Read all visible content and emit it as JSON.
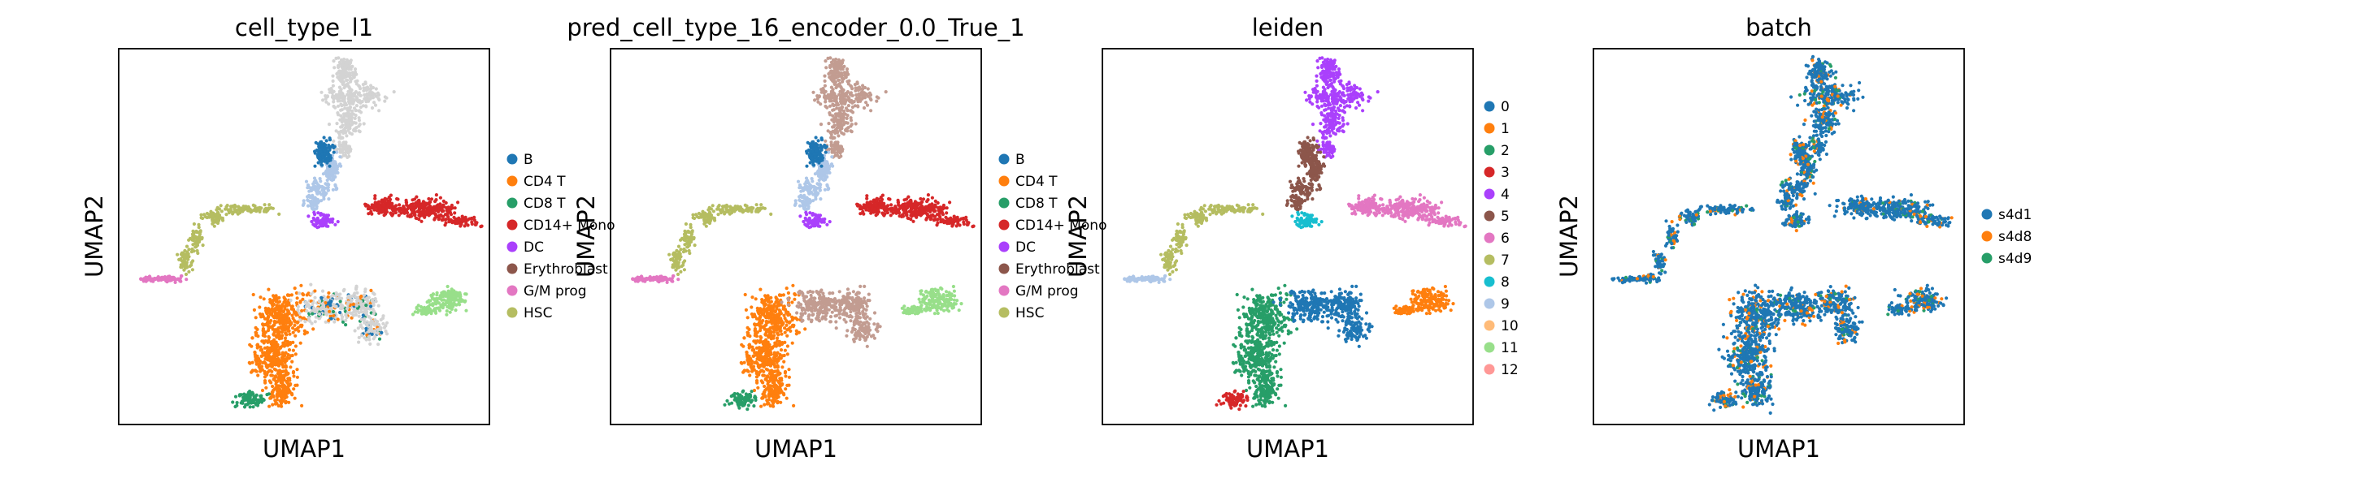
{
  "figure": {
    "panels": [
      {
        "title": "cell_type_l1",
        "xlabel": "UMAP1",
        "ylabel": "UMAP2",
        "legend": [
          {
            "label": "B",
            "color": "#1f77b4"
          },
          {
            "label": "CD4 T",
            "color": "#ff7f0e"
          },
          {
            "label": "CD8 T",
            "color": "#279e68"
          },
          {
            "label": "CD14+ Mono",
            "color": "#d62728"
          },
          {
            "label": "DC",
            "color": "#aa40fc"
          },
          {
            "label": "Erythroblast",
            "color": "#8c564b"
          },
          {
            "label": "G/M prog",
            "color": "#e377c2"
          },
          {
            "label": "HSC",
            "color": "#b5bd61"
          }
        ]
      },
      {
        "title": "pred_cell_type_16_encoder_0.0_True_1",
        "xlabel": "UMAP1",
        "ylabel": "UMAP2",
        "legend": [
          {
            "label": "B",
            "color": "#1f77b4"
          },
          {
            "label": "CD4 T",
            "color": "#ff7f0e"
          },
          {
            "label": "CD8 T",
            "color": "#279e68"
          },
          {
            "label": "CD14+ Mono",
            "color": "#d62728"
          },
          {
            "label": "DC",
            "color": "#aa40fc"
          },
          {
            "label": "Erythroblast",
            "color": "#8c564b"
          },
          {
            "label": "G/M prog",
            "color": "#e377c2"
          },
          {
            "label": "HSC",
            "color": "#b5bd61"
          }
        ]
      },
      {
        "title": "leiden",
        "xlabel": "UMAP1",
        "ylabel": "UMAP2",
        "legend": [
          {
            "label": "0",
            "color": "#1f77b4"
          },
          {
            "label": "1",
            "color": "#ff7f0e"
          },
          {
            "label": "2",
            "color": "#279e68"
          },
          {
            "label": "3",
            "color": "#d62728"
          },
          {
            "label": "4",
            "color": "#aa40fc"
          },
          {
            "label": "5",
            "color": "#8c564b"
          },
          {
            "label": "6",
            "color": "#e377c2"
          },
          {
            "label": "7",
            "color": "#b5bd61"
          },
          {
            "label": "8",
            "color": "#17becf"
          },
          {
            "label": "9",
            "color": "#aec7e8"
          },
          {
            "label": "10",
            "color": "#ffbb78"
          },
          {
            "label": "11",
            "color": "#98df8a"
          },
          {
            "label": "12",
            "color": "#ff9896"
          }
        ]
      },
      {
        "title": "batch",
        "xlabel": "UMAP1",
        "ylabel": "UMAP2",
        "legend": [
          {
            "label": "s4d1",
            "color": "#1f77b4"
          },
          {
            "label": "s4d8",
            "color": "#ff7f0e"
          },
          {
            "label": "s4d9",
            "color": "#279e68"
          }
        ]
      }
    ]
  },
  "chart_data": [
    {
      "type": "scatter",
      "title": "cell_type_l1",
      "xlabel": "UMAP1",
      "ylabel": "UMAP2",
      "ticks": "none",
      "grid": false,
      "legend_position": "right",
      "series": [
        {
          "name": "B",
          "color": "#1f77b4",
          "cluster": "upper stalk"
        },
        {
          "name": "CD4 T",
          "color": "#ff7f0e",
          "cluster": "lower-left mass"
        },
        {
          "name": "CD8 T",
          "color": "#279e68",
          "cluster": "bottom blob"
        },
        {
          "name": "CD14+ Mono",
          "color": "#d62728",
          "cluster": "middle-right arm"
        },
        {
          "name": "DC",
          "color": "#aa40fc",
          "cluster": "middle center"
        },
        {
          "name": "Erythroblast",
          "color": "#8c564b",
          "cluster": "left tail"
        },
        {
          "name": "G/M prog",
          "color": "#e377c2",
          "cluster": "left tail tip"
        },
        {
          "name": "HSC",
          "color": "#b5bd61",
          "cluster": "arc center"
        }
      ],
      "notes": "Unlabeled cells shown in light grey (top spire and lower-right region)."
    },
    {
      "type": "scatter",
      "title": "pred_cell_type_16_encoder_0.0_True_1",
      "xlabel": "UMAP1",
      "ylabel": "UMAP2",
      "ticks": "none",
      "grid": false,
      "legend_position": "right",
      "series": [
        {
          "name": "B",
          "color": "#1f77b4"
        },
        {
          "name": "CD4 T",
          "color": "#ff7f0e"
        },
        {
          "name": "CD8 T",
          "color": "#279e68"
        },
        {
          "name": "CD14+ Mono",
          "color": "#d62728"
        },
        {
          "name": "DC",
          "color": "#aa40fc"
        },
        {
          "name": "Erythroblast",
          "color": "#8c564b"
        },
        {
          "name": "G/M prog",
          "color": "#e377c2"
        },
        {
          "name": "HSC",
          "color": "#b5bd61"
        }
      ]
    },
    {
      "type": "scatter",
      "title": "leiden",
      "xlabel": "UMAP1",
      "ylabel": "UMAP2",
      "ticks": "none",
      "grid": false,
      "legend_position": "right",
      "series": [
        {
          "name": "0",
          "color": "#1f77b4"
        },
        {
          "name": "1",
          "color": "#ff7f0e"
        },
        {
          "name": "2",
          "color": "#279e68"
        },
        {
          "name": "3",
          "color": "#d62728"
        },
        {
          "name": "4",
          "color": "#aa40fc"
        },
        {
          "name": "5",
          "color": "#8c564b"
        },
        {
          "name": "6",
          "color": "#e377c2"
        },
        {
          "name": "7",
          "color": "#b5bd61"
        },
        {
          "name": "8",
          "color": "#17becf"
        },
        {
          "name": "9",
          "color": "#aec7e8"
        },
        {
          "name": "10",
          "color": "#ffbb78"
        },
        {
          "name": "11",
          "color": "#98df8a"
        },
        {
          "name": "12",
          "color": "#ff9896"
        }
      ]
    },
    {
      "type": "scatter",
      "title": "batch",
      "xlabel": "UMAP1",
      "ylabel": "UMAP2",
      "ticks": "none",
      "grid": false,
      "legend_position": "right",
      "series": [
        {
          "name": "s4d1",
          "color": "#1f77b4"
        },
        {
          "name": "s4d8",
          "color": "#ff7f0e"
        },
        {
          "name": "s4d9",
          "color": "#279e68"
        }
      ]
    }
  ]
}
